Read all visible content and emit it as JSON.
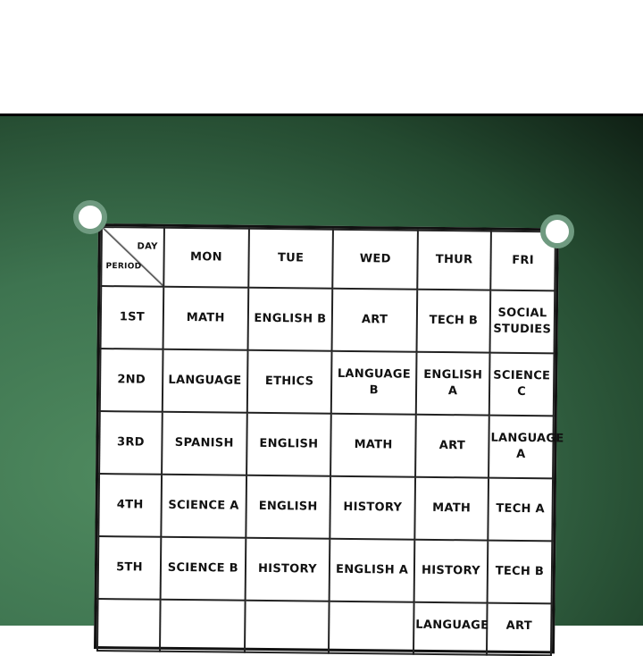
{
  "timetable": {
    "corner_day": "DAY",
    "corner_period": "PERIOD",
    "days": [
      "MON",
      "TUE",
      "WED",
      "THUR",
      "FRI"
    ],
    "rows": [
      {
        "period": "1ST",
        "cells": [
          "MATH",
          "ENGLISH B",
          "ART",
          "TECH B",
          "SOCIAL STUDIES"
        ]
      },
      {
        "period": "2ND",
        "cells": [
          "LANGUAGE",
          "ETHICS",
          "LANGUAGE B",
          "ENGLISH A",
          "SCIENCE C"
        ]
      },
      {
        "period": "3RD",
        "cells": [
          "SPANISH",
          "ENGLISH",
          "MATH",
          "ART",
          "LANGUAGE A"
        ]
      },
      {
        "period": "4TH",
        "cells": [
          "SCIENCE A",
          "ENGLISH",
          "HISTORY",
          "MATH",
          "TECH A"
        ]
      },
      {
        "period": "5TH",
        "cells": [
          "SCIENCE B",
          "HISTORY",
          "ENGLISH A",
          "HISTORY",
          "TECH B"
        ]
      },
      {
        "period": "",
        "cells": [
          "",
          "",
          "",
          "LANGUAGE",
          "ART"
        ]
      }
    ]
  },
  "colors": {
    "board": "#3e7450",
    "pin_ring": "#6f9a80"
  }
}
